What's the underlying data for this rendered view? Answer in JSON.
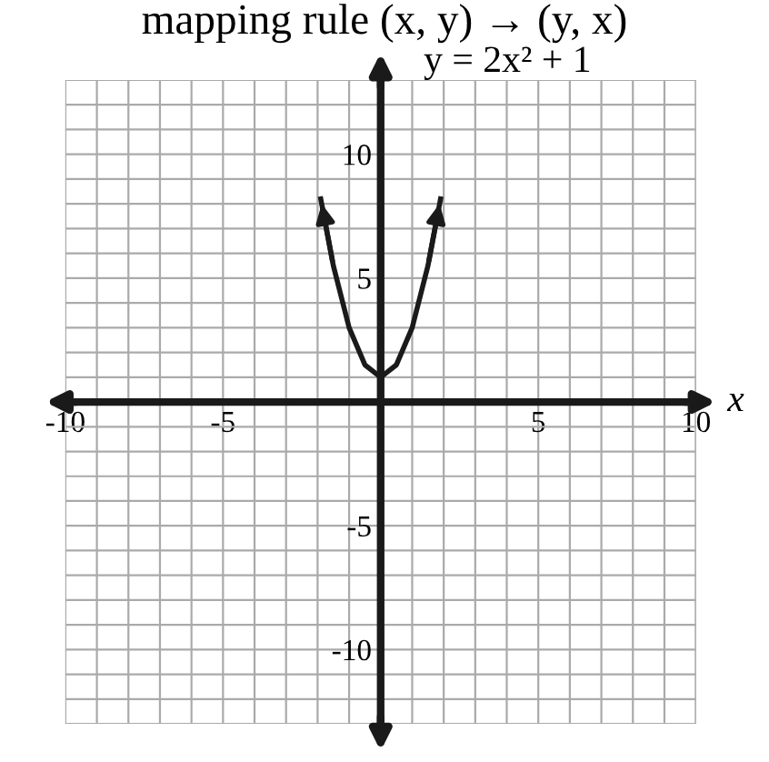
{
  "chart_data": {
    "type": "line",
    "title": "mapping rule (x, y) → (y, x)",
    "xlabel": "x",
    "annotations": [
      "y = 2x² + 1"
    ],
    "series": [
      {
        "color": "#1a1a1a",
        "x": [
          -1.9,
          -1.5,
          -1,
          -0.5,
          0,
          0.5,
          1,
          1.5,
          1.9
        ],
        "values": [
          8.2,
          5.5,
          3,
          1.5,
          1,
          1.5,
          3,
          5.5,
          8.2
        ]
      }
    ],
    "xlim": [
      -10,
      10
    ],
    "ylim": [
      -13,
      13
    ],
    "xticks": [
      -10,
      {
        "value": -9,
        "label": null
      },
      {
        "value": -8,
        "label": null
      },
      {
        "value": -7,
        "label": null
      },
      {
        "value": -6,
        "label": null
      },
      -5,
      {
        "value": -4,
        "label": null
      },
      {
        "value": -3,
        "label": null
      },
      {
        "value": -2,
        "label": null
      },
      {
        "value": -1,
        "label": null
      },
      {
        "value": 0,
        "label": null
      },
      {
        "value": 1,
        "label": null
      },
      {
        "value": 2,
        "label": null
      },
      {
        "value": 3,
        "label": null
      },
      {
        "value": 4,
        "label": null
      },
      5,
      {
        "value": 6,
        "label": null
      },
      {
        "value": 7,
        "label": null
      },
      {
        "value": 8,
        "label": null
      },
      {
        "value": 9,
        "label": null
      },
      10
    ],
    "yticks": [
      {
        "value": -13,
        "label": null
      },
      {
        "value": -12,
        "label": null
      },
      {
        "value": -11,
        "label": null
      },
      -10,
      {
        "value": -9,
        "label": null
      },
      {
        "value": -8,
        "label": null
      },
      {
        "value": -7,
        "label": null
      },
      {
        "value": -6,
        "label": null
      },
      -5,
      {
        "value": -4,
        "label": null
      },
      {
        "value": -3,
        "label": null
      },
      {
        "value": -2,
        "label": null
      },
      {
        "value": -1,
        "label": null
      },
      {
        "value": 0,
        "label": null
      },
      {
        "value": 1,
        "label": null
      },
      {
        "value": 2,
        "label": null
      },
      {
        "value": 3,
        "label": null
      },
      {
        "value": 4,
        "label": null
      },
      5,
      {
        "value": 6,
        "label": null
      },
      {
        "value": 7,
        "label": null
      },
      {
        "value": 8,
        "label": null
      },
      {
        "value": 9,
        "label": null
      },
      10,
      {
        "value": 11,
        "label": null
      },
      {
        "value": 12,
        "label": null
      },
      {
        "value": 13,
        "label": null
      }
    ],
    "grid": true,
    "line_style": "solid",
    "marker": "none"
  }
}
